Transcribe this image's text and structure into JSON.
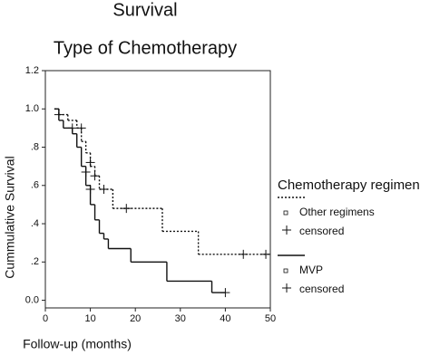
{
  "chart_data": {
    "type": "step",
    "title": "Survival",
    "subtitle": "Type of Chemotherapy",
    "x_label": "Follow-up (months)",
    "y_label": "Cummulative Survival",
    "legend_title": "Chemotherapy regimen",
    "xlim": [
      0,
      50
    ],
    "xticks": [
      0,
      10,
      20,
      30,
      40,
      50
    ],
    "ylim": [
      -0.04,
      1.2
    ],
    "yticks": [
      {
        "value": 0,
        "label": "0.0"
      },
      {
        "value": 0.2,
        "label": ".2"
      },
      {
        "value": 0.4,
        "label": ".4"
      },
      {
        "value": 0.6,
        "label": ".6"
      },
      {
        "value": 0.8,
        "label": ".8"
      },
      {
        "value": 1,
        "label": "1.0"
      },
      1.2
    ],
    "series": [
      {
        "name": "Other regimens",
        "style": "dotted",
        "color": "#111111",
        "x": [
          2,
          3,
          5,
          7,
          8,
          9,
          10,
          11,
          12,
          15,
          26,
          34,
          50
        ],
        "values": [
          1.0,
          0.97,
          0.94,
          0.9,
          0.83,
          0.77,
          0.7,
          0.65,
          0.58,
          0.48,
          0.36,
          0.24,
          0.24
        ]
      },
      {
        "name": "censored",
        "style": "censor",
        "color": "#111111",
        "x": [
          8,
          10,
          11,
          13,
          18,
          44,
          49
        ],
        "values": [
          0.9,
          0.72,
          0.65,
          0.58,
          0.48,
          0.24,
          0.24
        ]
      },
      {
        "name": "MVP",
        "style": "solid",
        "color": "#111111",
        "x": [
          2,
          3,
          4,
          6,
          7,
          8,
          9,
          10,
          11,
          12,
          13,
          14,
          19,
          27,
          37,
          40
        ],
        "values": [
          1.0,
          0.94,
          0.9,
          0.87,
          0.8,
          0.7,
          0.6,
          0.5,
          0.42,
          0.35,
          0.32,
          0.27,
          0.2,
          0.1,
          0.04,
          0.04
        ]
      },
      {
        "name": "censored",
        "style": "censor",
        "color": "#111111",
        "x": [
          3,
          6,
          9,
          10,
          40
        ],
        "values": [
          0.97,
          0.9,
          0.67,
          0.58,
          0.04
        ]
      }
    ]
  }
}
